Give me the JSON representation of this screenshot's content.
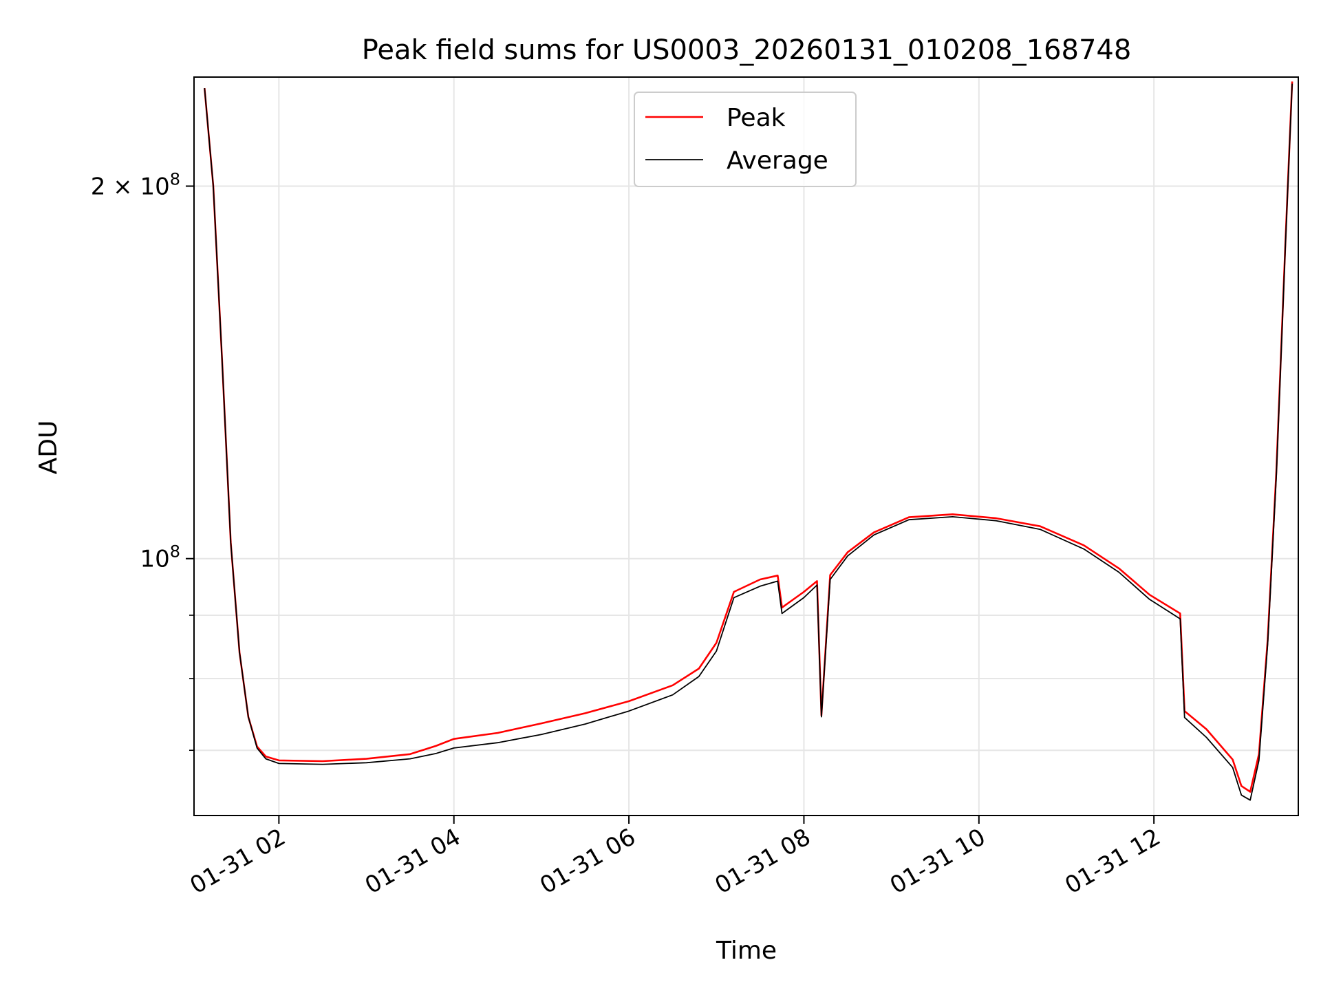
{
  "chart_data": {
    "type": "line",
    "title": "Peak field sums for US0003_20260131_010208_168748",
    "xlabel": "Time",
    "ylabel": "ADU",
    "yscale": "log",
    "xlim": [
      1.03,
      13.65
    ],
    "ylim": [
      62000000,
      245000000
    ],
    "grid": true,
    "legend_position": "top-center",
    "xticks": [
      {
        "value": 2,
        "label": "01-31 02"
      },
      {
        "value": 4,
        "label": "01-31 04"
      },
      {
        "value": 6,
        "label": "01-31 06"
      },
      {
        "value": 8,
        "label": "01-31 08"
      },
      {
        "value": 10,
        "label": "01-31 10"
      },
      {
        "value": 12,
        "label": "01-31 12"
      }
    ],
    "yticks_major": [
      {
        "value": 100000000,
        "base": "10",
        "exp": "8",
        "mantissa": ""
      },
      {
        "value": 200000000,
        "base": "10",
        "exp": "8",
        "mantissa": "2 × "
      }
    ],
    "yticks_minor": [
      70000000,
      80000000,
      90000000
    ],
    "series": [
      {
        "name": "Peak",
        "color": "#ff0000",
        "x": [
          1.15,
          1.25,
          1.35,
          1.45,
          1.55,
          1.65,
          1.75,
          1.85,
          2.0,
          2.5,
          3.0,
          3.5,
          3.8,
          4.0,
          4.5,
          5.0,
          5.5,
          6.0,
          6.5,
          6.8,
          7.0,
          7.2,
          7.5,
          7.7,
          7.75,
          8.0,
          8.15,
          8.2,
          8.3,
          8.5,
          8.8,
          9.2,
          9.7,
          10.2,
          10.7,
          11.2,
          11.6,
          11.95,
          12.3,
          12.35,
          12.6,
          12.9,
          13.0,
          13.1,
          13.2,
          13.3,
          13.4,
          13.5,
          13.58
        ],
        "y": [
          240000000,
          200000000,
          145000000,
          103000000,
          84000000,
          74500000,
          70500000,
          69200000,
          68700000,
          68600000,
          68900000,
          69500000,
          70600000,
          71500000,
          72300000,
          73600000,
          75000000,
          76700000,
          79000000,
          81500000,
          85500000,
          94000000,
          96200000,
          96900000,
          91300000,
          94000000,
          95900000,
          74700000,
          97000000,
          101200000,
          105000000,
          108000000,
          108600000,
          107800000,
          106200000,
          102500000,
          98200000,
          93500000,
          90300000,
          75300000,
          72800000,
          68800000,
          65500000,
          64800000,
          69500000,
          86000000,
          118000000,
          178000000,
          243000000
        ]
      },
      {
        "name": "Average",
        "color": "#000000",
        "x": [
          1.15,
          1.25,
          1.35,
          1.45,
          1.55,
          1.65,
          1.75,
          1.85,
          2.0,
          2.5,
          3.0,
          3.5,
          3.8,
          4.0,
          4.5,
          5.0,
          5.5,
          6.0,
          6.5,
          6.8,
          7.0,
          7.2,
          7.5,
          7.7,
          7.75,
          8.0,
          8.15,
          8.2,
          8.3,
          8.5,
          8.8,
          9.2,
          9.7,
          10.2,
          10.7,
          11.2,
          11.6,
          11.95,
          12.3,
          12.35,
          12.6,
          12.9,
          13.0,
          13.1,
          13.2,
          13.3,
          13.4,
          13.5,
          13.58
        ],
        "y": [
          240000000,
          200000000,
          145000000,
          103000000,
          84000000,
          74500000,
          70300000,
          68900000,
          68300000,
          68200000,
          68400000,
          68900000,
          69600000,
          70300000,
          71000000,
          72100000,
          73500000,
          75300000,
          77600000,
          80300000,
          84200000,
          93000000,
          95000000,
          95900000,
          90300000,
          93000000,
          95200000,
          74500000,
          96200000,
          100500000,
          104500000,
          107500000,
          108100000,
          107300000,
          105600000,
          101800000,
          97500000,
          92700000,
          89400000,
          74400000,
          71700000,
          67800000,
          64400000,
          63800000,
          68700000,
          85300000,
          117000000,
          177000000,
          242000000
        ]
      }
    ]
  }
}
